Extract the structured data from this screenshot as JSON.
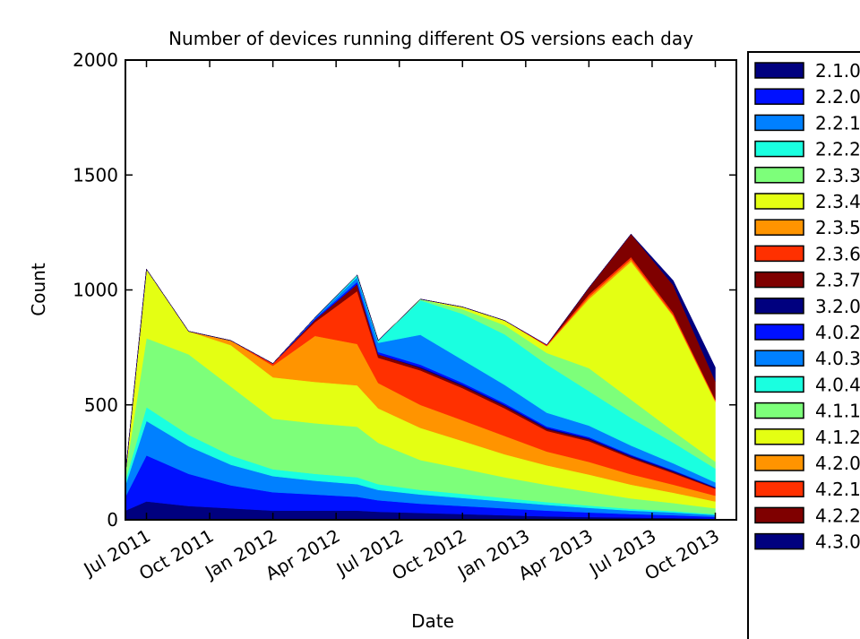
{
  "chart_data": {
    "type": "stackedarea",
    "title": "Number of devices running different OS versions each day",
    "xlabel": "Date",
    "ylabel": "Count",
    "x": [
      "2011-06",
      "2011-07",
      "2011-09",
      "2011-11",
      "2012-01",
      "2012-03",
      "2012-05",
      "2012-06",
      "2012-08",
      "2012-10",
      "2012-12",
      "2013-02",
      "2013-04",
      "2013-06",
      "2013-08",
      "2013-10"
    ],
    "xlim": [
      "2011-06",
      "2013-11"
    ],
    "xticks": [
      {
        "value": "2011-07",
        "label": "Jul 2011"
      },
      {
        "value": "2011-10",
        "label": "Oct 2011"
      },
      {
        "value": "2012-01",
        "label": "Jan 2012"
      },
      {
        "value": "2012-04",
        "label": "Apr 2012"
      },
      {
        "value": "2012-07",
        "label": "Jul 2012"
      },
      {
        "value": "2012-10",
        "label": "Oct 2012"
      },
      {
        "value": "2013-01",
        "label": "Jan 2013"
      },
      {
        "value": "2013-04",
        "label": "Apr 2013"
      },
      {
        "value": "2013-07",
        "label": "Jul 2013"
      },
      {
        "value": "2013-10",
        "label": "Oct 2013"
      }
    ],
    "ylim": [
      0,
      2000
    ],
    "yticks": [
      0,
      500,
      1000,
      1500,
      2000
    ],
    "legend": "outside right",
    "series": [
      {
        "name": "2.1.0",
        "color": "#00007f",
        "values": [
          40,
          80,
          60,
          50,
          40,
          40,
          40,
          35,
          30,
          25,
          20,
          15,
          12,
          10,
          8,
          5
        ]
      },
      {
        "name": "2.2.0",
        "color": "#0010ff",
        "values": [
          60,
          200,
          140,
          100,
          80,
          70,
          60,
          50,
          40,
          35,
          30,
          25,
          20,
          15,
          12,
          8
        ]
      },
      {
        "name": "2.2.1",
        "color": "#0080ff",
        "values": [
          50,
          150,
          120,
          90,
          70,
          60,
          55,
          45,
          40,
          35,
          30,
          25,
          20,
          15,
          12,
          8
        ]
      },
      {
        "name": "2.2.2",
        "color": "#1affe0",
        "values": [
          20,
          60,
          50,
          40,
          30,
          30,
          30,
          25,
          20,
          18,
          15,
          12,
          10,
          8,
          6,
          4
        ]
      },
      {
        "name": "2.3.3",
        "color": "#7dff7a",
        "values": [
          30,
          300,
          350,
          300,
          220,
          220,
          220,
          180,
          130,
          110,
          90,
          75,
          60,
          45,
          35,
          25
        ]
      },
      {
        "name": "2.3.4",
        "color": "#e4ff13",
        "values": [
          0,
          300,
          100,
          180,
          180,
          180,
          180,
          150,
          140,
          120,
          100,
          85,
          75,
          60,
          45,
          30
        ]
      },
      {
        "name": "2.3.5",
        "color": "#ff9400",
        "values": [
          0,
          0,
          0,
          20,
          50,
          200,
          180,
          110,
          100,
          90,
          80,
          60,
          55,
          45,
          35,
          25
        ]
      },
      {
        "name": "2.3.6",
        "color": "#ff3000",
        "values": [
          0,
          0,
          0,
          0,
          10,
          60,
          230,
          110,
          150,
          140,
          120,
          90,
          90,
          70,
          50,
          30
        ]
      },
      {
        "name": "2.3.7",
        "color": "#7f0000",
        "values": [
          0,
          0,
          0,
          0,
          0,
          10,
          30,
          15,
          10,
          10,
          10,
          8,
          8,
          6,
          5,
          3
        ]
      },
      {
        "name": "3.2.0",
        "color": "#00007f",
        "values": [
          0,
          0,
          0,
          0,
          0,
          0,
          0,
          0,
          5,
          5,
          5,
          5,
          5,
          5,
          5,
          3
        ]
      },
      {
        "name": "4.0.2",
        "color": "#0010ff",
        "values": [
          0,
          0,
          0,
          0,
          0,
          5,
          10,
          10,
          10,
          8,
          7,
          6,
          5,
          4,
          3,
          2
        ]
      },
      {
        "name": "4.0.3",
        "color": "#0080ff",
        "values": [
          0,
          0,
          0,
          0,
          0,
          5,
          20,
          40,
          130,
          100,
          80,
          60,
          50,
          40,
          30,
          20
        ]
      },
      {
        "name": "4.0.4",
        "color": "#1affe0",
        "values": [
          0,
          0,
          0,
          0,
          0,
          0,
          10,
          10,
          150,
          200,
          220,
          210,
          150,
          120,
          90,
          60
        ]
      },
      {
        "name": "4.1.1",
        "color": "#7dff7a",
        "values": [
          0,
          0,
          0,
          0,
          0,
          0,
          0,
          0,
          5,
          20,
          40,
          50,
          100,
          80,
          50,
          30
        ]
      },
      {
        "name": "4.1.2",
        "color": "#e4ff13",
        "values": [
          0,
          0,
          0,
          0,
          0,
          0,
          0,
          0,
          0,
          10,
          20,
          30,
          300,
          600,
          500,
          260
        ]
      },
      {
        "name": "4.2.0",
        "color": "#ff9400",
        "values": [
          0,
          0,
          0,
          0,
          0,
          0,
          0,
          0,
          0,
          0,
          0,
          0,
          10,
          10,
          5,
          5
        ]
      },
      {
        "name": "4.2.1",
        "color": "#ff3000",
        "values": [
          0,
          0,
          0,
          0,
          0,
          0,
          0,
          0,
          0,
          0,
          0,
          5,
          10,
          10,
          10,
          5
        ]
      },
      {
        "name": "4.2.2",
        "color": "#7f0000",
        "values": [
          0,
          0,
          0,
          0,
          0,
          0,
          0,
          0,
          0,
          0,
          0,
          0,
          30,
          100,
          120,
          80
        ]
      },
      {
        "name": "4.3.0",
        "color": "#00007f",
        "values": [
          0,
          0,
          0,
          0,
          0,
          0,
          0,
          0,
          0,
          0,
          0,
          0,
          0,
          0,
          20,
          60
        ]
      }
    ]
  }
}
